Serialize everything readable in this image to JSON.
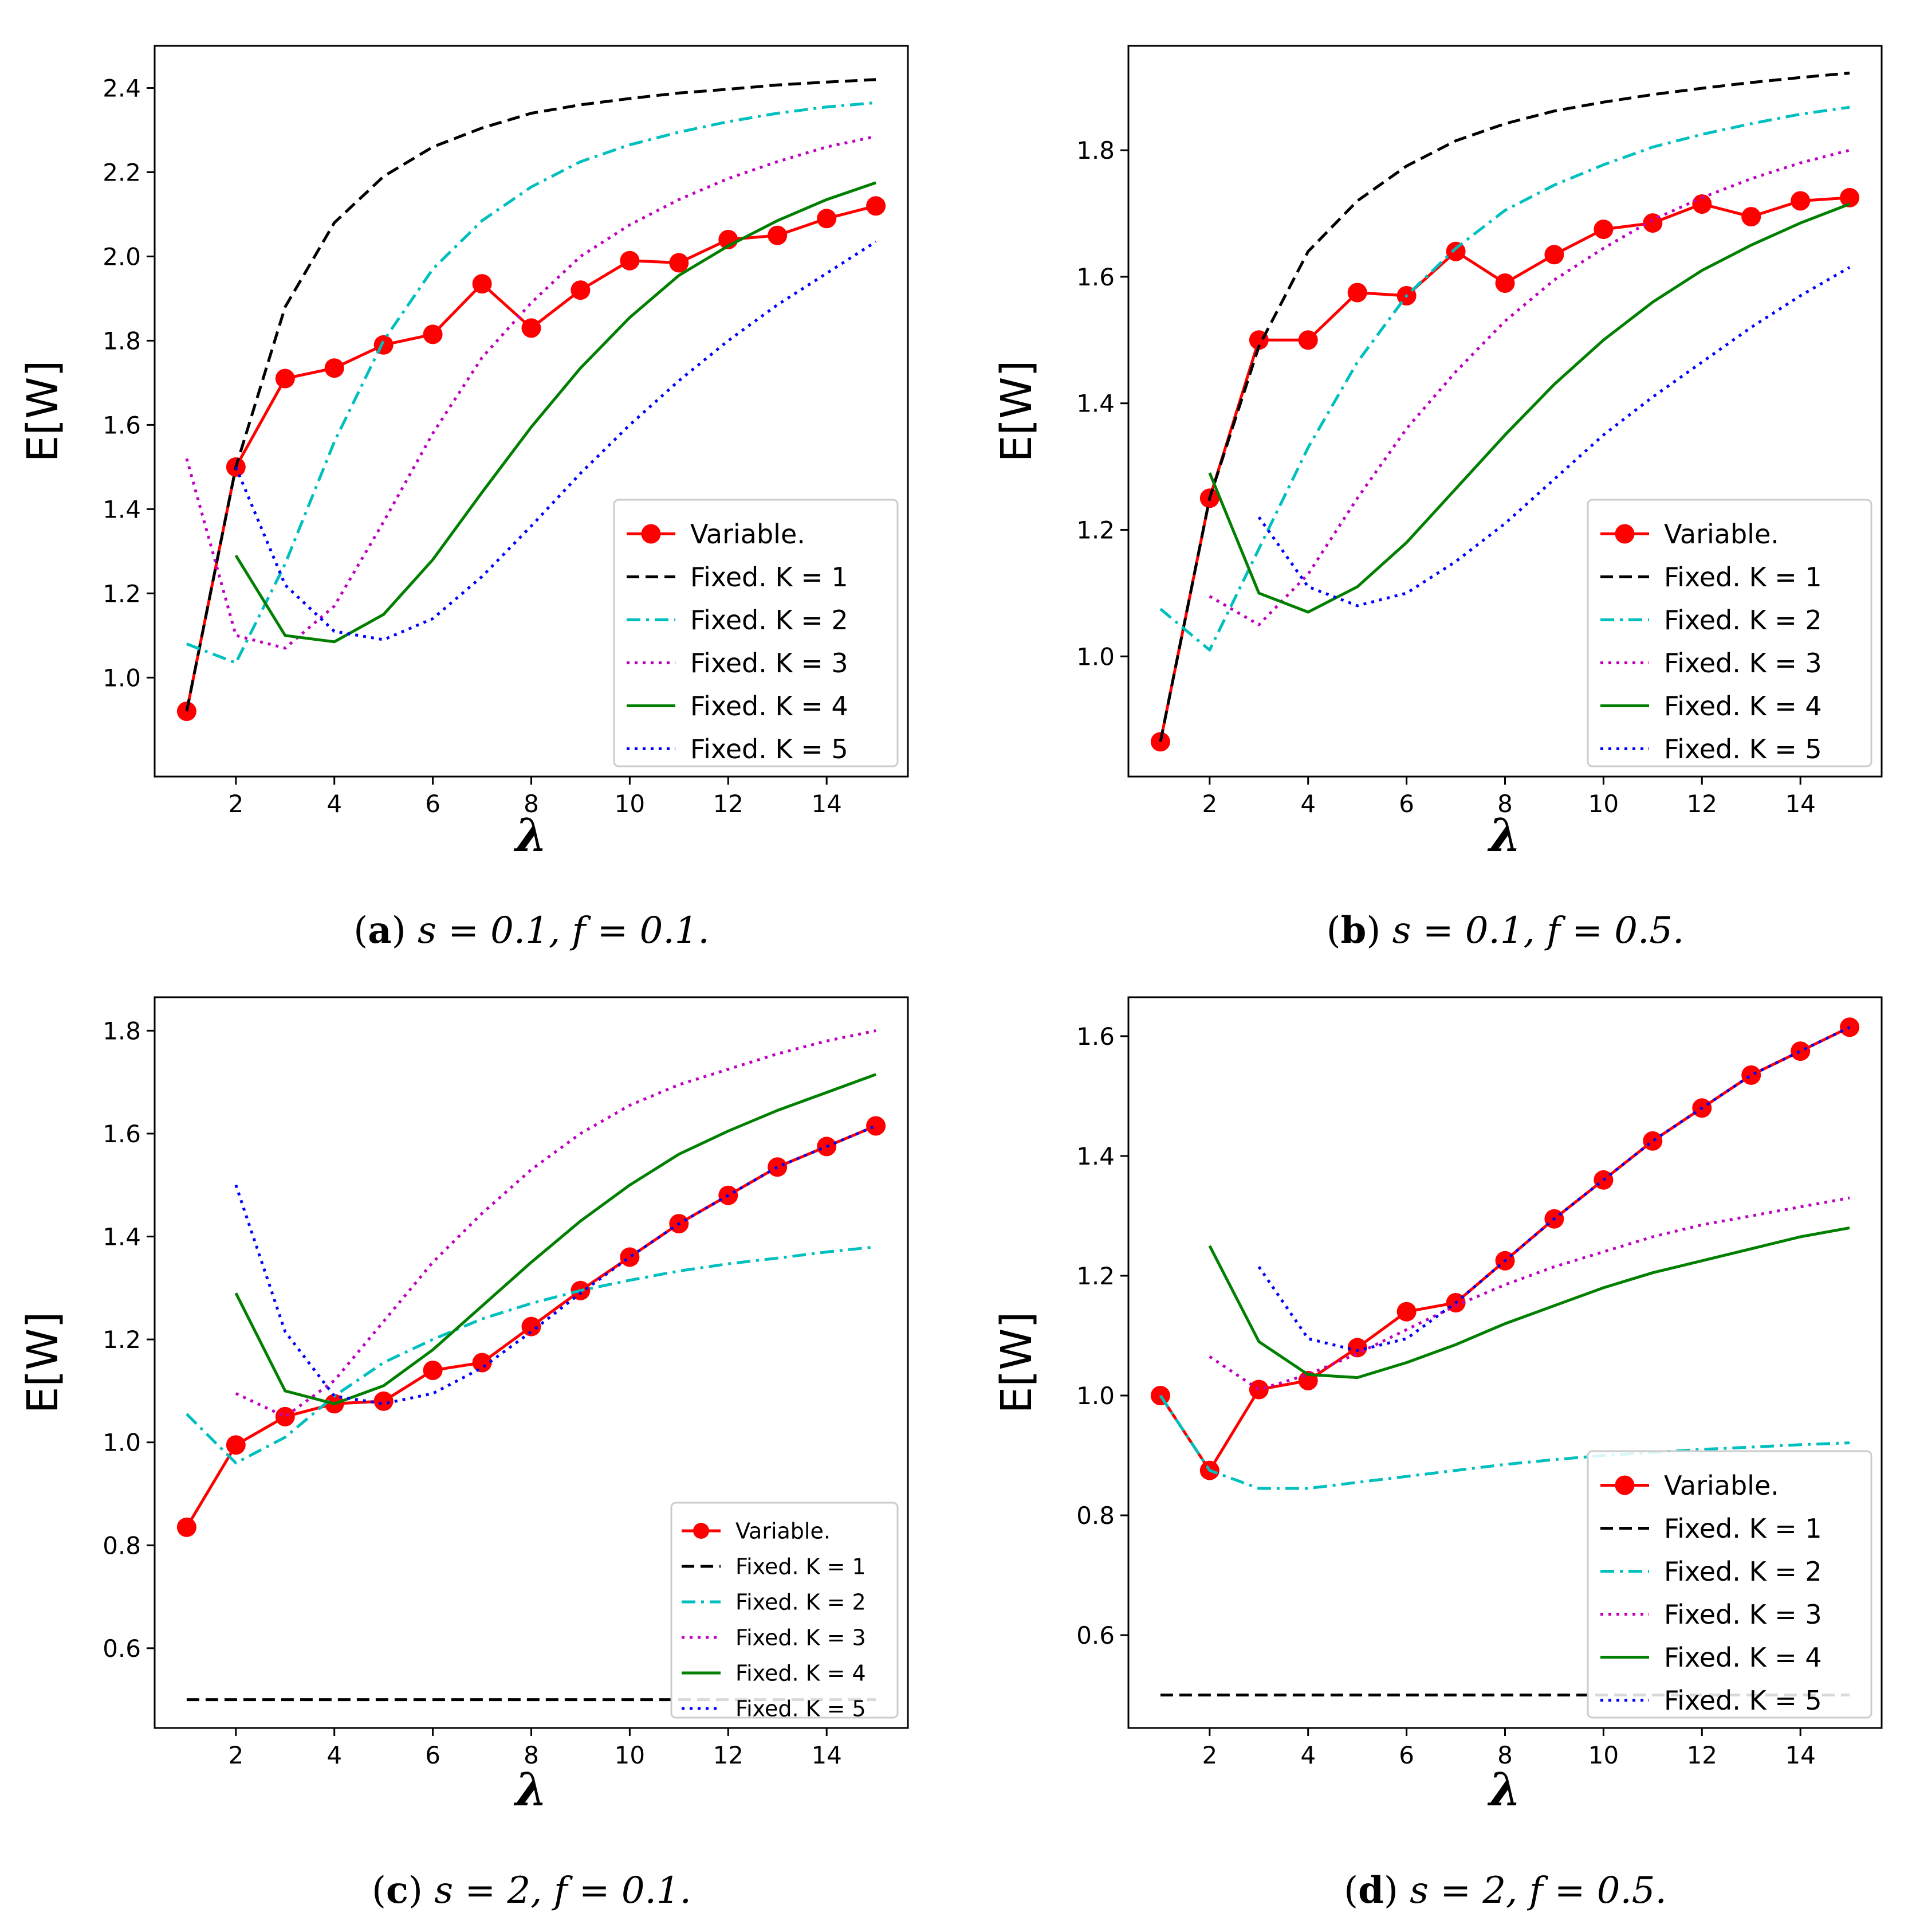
{
  "chart_data": [
    {
      "id": "a",
      "type": "line",
      "caption": {
        "letter": "a",
        "text": "s = 0.1, f = 0.1."
      },
      "xlabel": "λ",
      "ylabel": "E[W]",
      "xlim": [
        0.35,
        15.65
      ],
      "ylim": [
        0.765,
        2.5
      ],
      "xticks": [
        2,
        4,
        6,
        8,
        10,
        12,
        14
      ],
      "yticks": [
        1.0,
        1.2,
        1.4,
        1.6,
        1.8,
        2.0,
        2.2,
        2.4
      ],
      "ytick_labels": [
        "1.0",
        "1.2",
        "1.4",
        "1.6",
        "1.8",
        "2.0",
        "2.2",
        "2.4"
      ],
      "legend": {
        "location": "lower-right",
        "size": "large"
      },
      "series": [
        {
          "name": "Variable.",
          "color": "#ff0000",
          "style": "solid-marker",
          "x": [
            1,
            2,
            3,
            4,
            5,
            6,
            7,
            8,
            9,
            10,
            11,
            12,
            13,
            14,
            15
          ],
          "y": [
            0.92,
            1.5,
            1.71,
            1.735,
            1.79,
            1.815,
            1.935,
            1.83,
            1.92,
            1.99,
            1.985,
            2.04,
            2.05,
            2.09,
            2.12
          ]
        },
        {
          "name": "Fixed. K = 1",
          "color": "#000000",
          "style": "dashed",
          "x": [
            1,
            2,
            3,
            4,
            5,
            6,
            7,
            8,
            9,
            10,
            11,
            12,
            13,
            14,
            15
          ],
          "y": [
            0.92,
            1.5,
            1.88,
            2.08,
            2.19,
            2.26,
            2.305,
            2.34,
            2.36,
            2.375,
            2.388,
            2.397,
            2.407,
            2.414,
            2.42
          ]
        },
        {
          "name": "Fixed. K = 2",
          "color": "#00bfbf",
          "style": "dashdot",
          "x": [
            1,
            2,
            3,
            4,
            5,
            6,
            7,
            8,
            9,
            10,
            11,
            12,
            13,
            14,
            15
          ],
          "y": [
            1.08,
            1.035,
            1.27,
            1.56,
            1.8,
            1.97,
            2.085,
            2.165,
            2.225,
            2.265,
            2.295,
            2.32,
            2.34,
            2.355,
            2.365
          ]
        },
        {
          "name": "Fixed. K = 3",
          "color": "#bf00bf",
          "style": "dotted",
          "x": [
            1,
            2,
            3,
            4,
            5,
            6,
            7,
            8,
            9,
            10,
            11,
            12,
            13,
            14,
            15
          ],
          "y": [
            1.52,
            1.1,
            1.07,
            1.17,
            1.37,
            1.58,
            1.76,
            1.89,
            2.0,
            2.075,
            2.135,
            2.185,
            2.225,
            2.26,
            2.285
          ]
        },
        {
          "name": "Fixed. K = 4",
          "color": "#007f00",
          "style": "solid",
          "x": [
            2,
            3,
            4,
            5,
            6,
            7,
            8,
            9,
            10,
            11,
            12,
            13,
            14,
            15
          ],
          "y": [
            1.29,
            1.1,
            1.085,
            1.15,
            1.28,
            1.44,
            1.595,
            1.735,
            1.855,
            1.955,
            2.025,
            2.085,
            2.135,
            2.175
          ]
        },
        {
          "name": "Fixed. K = 5",
          "color": "#0000ff",
          "style": "dotted",
          "x": [
            2,
            3,
            4,
            5,
            6,
            7,
            8,
            9,
            10,
            11,
            12,
            13,
            14,
            15
          ],
          "y": [
            1.5,
            1.22,
            1.11,
            1.09,
            1.14,
            1.24,
            1.36,
            1.485,
            1.6,
            1.705,
            1.8,
            1.885,
            1.96,
            2.035
          ]
        }
      ]
    },
    {
      "id": "b",
      "type": "line",
      "caption": {
        "letter": "b",
        "text": "s = 0.1, f = 0.5."
      },
      "xlabel": "λ",
      "ylabel": "E[W]",
      "xlim": [
        0.35,
        15.65
      ],
      "ylim": [
        0.81,
        1.965
      ],
      "xticks": [
        2,
        4,
        6,
        8,
        10,
        12,
        14
      ],
      "yticks": [
        1.0,
        1.2,
        1.4,
        1.6,
        1.8
      ],
      "ytick_labels": [
        "1.0",
        "1.2",
        "1.4",
        "1.6",
        "1.8"
      ],
      "legend": {
        "location": "lower-right",
        "size": "large"
      },
      "series": [
        {
          "name": "Variable.",
          "color": "#ff0000",
          "style": "solid-marker",
          "x": [
            1,
            2,
            3,
            4,
            5,
            6,
            7,
            8,
            9,
            10,
            11,
            12,
            13,
            14,
            15
          ],
          "y": [
            0.865,
            1.25,
            1.5,
            1.5,
            1.575,
            1.57,
            1.64,
            1.59,
            1.635,
            1.675,
            1.685,
            1.715,
            1.695,
            1.72,
            1.725
          ]
        },
        {
          "name": "Fixed. K = 1",
          "color": "#000000",
          "style": "dashed",
          "x": [
            1,
            2,
            3,
            4,
            5,
            6,
            7,
            8,
            9,
            10,
            11,
            12,
            13,
            14,
            15
          ],
          "y": [
            0.865,
            1.25,
            1.49,
            1.64,
            1.72,
            1.775,
            1.815,
            1.842,
            1.862,
            1.876,
            1.888,
            1.898,
            1.907,
            1.915,
            1.922
          ]
        },
        {
          "name": "Fixed. K = 2",
          "color": "#00bfbf",
          "style": "dashdot",
          "x": [
            1,
            2,
            3,
            4,
            5,
            6,
            7,
            8,
            9,
            10,
            11,
            12,
            13,
            14,
            15
          ],
          "y": [
            1.075,
            1.01,
            1.17,
            1.33,
            1.465,
            1.57,
            1.645,
            1.705,
            1.745,
            1.777,
            1.805,
            1.825,
            1.842,
            1.857,
            1.868
          ]
        },
        {
          "name": "Fixed. K = 3",
          "color": "#bf00bf",
          "style": "dotted",
          "x": [
            2,
            3,
            4,
            5,
            6,
            7,
            8,
            9,
            10,
            11,
            12,
            13,
            14,
            15
          ],
          "y": [
            1.095,
            1.05,
            1.13,
            1.25,
            1.36,
            1.45,
            1.53,
            1.595,
            1.645,
            1.69,
            1.725,
            1.755,
            1.78,
            1.8
          ]
        },
        {
          "name": "Fixed. K = 4",
          "color": "#007f00",
          "style": "solid",
          "x": [
            2,
            3,
            4,
            5,
            6,
            7,
            8,
            9,
            10,
            11,
            12,
            13,
            14,
            15
          ],
          "y": [
            1.29,
            1.1,
            1.07,
            1.11,
            1.18,
            1.265,
            1.35,
            1.43,
            1.5,
            1.56,
            1.61,
            1.65,
            1.685,
            1.715
          ]
        },
        {
          "name": "Fixed. K = 5",
          "color": "#0000ff",
          "style": "dotted",
          "x": [
            3,
            4,
            5,
            6,
            7,
            8,
            9,
            10,
            11,
            12,
            13,
            14,
            15
          ],
          "y": [
            1.22,
            1.11,
            1.08,
            1.1,
            1.15,
            1.21,
            1.28,
            1.35,
            1.41,
            1.465,
            1.52,
            1.57,
            1.615
          ]
        }
      ]
    },
    {
      "id": "c",
      "type": "line",
      "caption": {
        "letter": "c",
        "text": "s = 2, f = 0.1."
      },
      "xlabel": "λ",
      "ylabel": "E[W]",
      "xlim": [
        0.35,
        15.65
      ],
      "ylim": [
        0.445,
        1.865
      ],
      "xticks": [
        2,
        4,
        6,
        8,
        10,
        12,
        14
      ],
      "yticks": [
        0.6,
        0.8,
        1.0,
        1.2,
        1.4,
        1.6,
        1.8
      ],
      "ytick_labels": [
        "0.6",
        "0.8",
        "1.0",
        "1.2",
        "1.4",
        "1.6",
        "1.8"
      ],
      "legend": {
        "location": "lower-right",
        "size": "small"
      },
      "series": [
        {
          "name": "Variable.",
          "color": "#ff0000",
          "style": "solid-marker",
          "x": [
            1,
            2,
            3,
            4,
            5,
            6,
            7,
            8,
            9,
            10,
            11,
            12,
            13,
            14,
            15
          ],
          "y": [
            0.835,
            0.995,
            1.05,
            1.075,
            1.08,
            1.14,
            1.155,
            1.225,
            1.295,
            1.36,
            1.425,
            1.48,
            1.535,
            1.575,
            1.615
          ]
        },
        {
          "name": "Fixed. K = 1",
          "color": "#000000",
          "style": "dashed",
          "x": [
            1,
            15
          ],
          "y": [
            0.5,
            0.5
          ]
        },
        {
          "name": "Fixed. K = 2",
          "color": "#00bfbf",
          "style": "dashdot",
          "x": [
            1,
            2,
            3,
            4,
            5,
            6,
            7,
            8,
            9,
            10,
            11,
            12,
            13,
            14,
            15
          ],
          "y": [
            1.055,
            0.96,
            1.01,
            1.09,
            1.155,
            1.2,
            1.24,
            1.27,
            1.295,
            1.315,
            1.333,
            1.347,
            1.358,
            1.37,
            1.38
          ]
        },
        {
          "name": "Fixed. K = 3",
          "color": "#bf00bf",
          "style": "dotted",
          "x": [
            2,
            3,
            4,
            5,
            6,
            7,
            8,
            9,
            10,
            11,
            12,
            13,
            14,
            15
          ],
          "y": [
            1.095,
            1.05,
            1.12,
            1.235,
            1.35,
            1.445,
            1.53,
            1.6,
            1.655,
            1.695,
            1.725,
            1.755,
            1.78,
            1.8
          ]
        },
        {
          "name": "Fixed. K = 4",
          "color": "#007f00",
          "style": "solid",
          "x": [
            2,
            3,
            4,
            5,
            6,
            7,
            8,
            9,
            10,
            11,
            12,
            13,
            14,
            15
          ],
          "y": [
            1.29,
            1.1,
            1.075,
            1.11,
            1.18,
            1.265,
            1.35,
            1.43,
            1.5,
            1.56,
            1.605,
            1.645,
            1.68,
            1.715
          ]
        },
        {
          "name": "Fixed. K = 5",
          "color": "#0000ff",
          "style": "dotted",
          "x": [
            2,
            3,
            4,
            5,
            6,
            7,
            8,
            9,
            10,
            11,
            12,
            13,
            14,
            15
          ],
          "y": [
            1.5,
            1.215,
            1.09,
            1.075,
            1.095,
            1.145,
            1.215,
            1.29,
            1.36,
            1.425,
            1.48,
            1.535,
            1.575,
            1.615
          ]
        }
      ]
    },
    {
      "id": "d",
      "type": "line",
      "caption": {
        "letter": "d",
        "text": "s = 2, f = 0.5."
      },
      "xlabel": "λ",
      "ylabel": "E[W]",
      "xlim": [
        0.35,
        15.65
      ],
      "ylim": [
        0.445,
        1.665
      ],
      "xticks": [
        2,
        4,
        6,
        8,
        10,
        12,
        14
      ],
      "yticks": [
        0.6,
        0.8,
        1.0,
        1.2,
        1.4,
        1.6
      ],
      "ytick_labels": [
        "0.6",
        "0.8",
        "1.0",
        "1.2",
        "1.4",
        "1.6"
      ],
      "legend": {
        "location": "lower-right",
        "size": "large"
      },
      "series": [
        {
          "name": "Variable.",
          "color": "#ff0000",
          "style": "solid-marker",
          "x": [
            1,
            2,
            3,
            4,
            5,
            6,
            7,
            8,
            9,
            10,
            11,
            12,
            13,
            14,
            15
          ],
          "y": [
            1.0,
            0.875,
            1.01,
            1.025,
            1.08,
            1.14,
            1.155,
            1.225,
            1.295,
            1.36,
            1.425,
            1.48,
            1.535,
            1.575,
            1.615
          ]
        },
        {
          "name": "Fixed. K = 1",
          "color": "#000000",
          "style": "dashed",
          "x": [
            1,
            15
          ],
          "y": [
            0.5,
            0.5
          ]
        },
        {
          "name": "Fixed. K = 2",
          "color": "#00bfbf",
          "style": "dashdot",
          "x": [
            1,
            2,
            3,
            4,
            5,
            6,
            7,
            8,
            9,
            10,
            11,
            12,
            13,
            14,
            15
          ],
          "y": [
            1.0,
            0.875,
            0.845,
            0.845,
            0.855,
            0.865,
            0.875,
            0.885,
            0.893,
            0.9,
            0.905,
            0.91,
            0.914,
            0.918,
            0.921
          ]
        },
        {
          "name": "Fixed. K = 3",
          "color": "#bf00bf",
          "style": "dotted",
          "x": [
            2,
            3,
            4,
            5,
            6,
            7,
            8,
            9,
            10,
            11,
            12,
            13,
            14,
            15
          ],
          "y": [
            1.065,
            1.01,
            1.035,
            1.07,
            1.11,
            1.15,
            1.185,
            1.215,
            1.24,
            1.265,
            1.285,
            1.3,
            1.315,
            1.33
          ]
        },
        {
          "name": "Fixed. K = 4",
          "color": "#007f00",
          "style": "solid",
          "x": [
            2,
            3,
            4,
            5,
            6,
            7,
            8,
            9,
            10,
            11,
            12,
            13,
            14,
            15
          ],
          "y": [
            1.25,
            1.09,
            1.035,
            1.03,
            1.055,
            1.085,
            1.12,
            1.15,
            1.18,
            1.205,
            1.225,
            1.245,
            1.265,
            1.28
          ]
        },
        {
          "name": "Fixed. K = 5",
          "color": "#0000ff",
          "style": "dotted",
          "x": [
            3,
            4,
            5,
            6,
            7,
            8,
            9,
            10,
            11,
            12,
            13,
            14,
            15
          ],
          "y": [
            1.215,
            1.095,
            1.075,
            1.095,
            1.155,
            1.225,
            1.295,
            1.36,
            1.425,
            1.48,
            1.535,
            1.575,
            1.615
          ]
        }
      ]
    }
  ]
}
